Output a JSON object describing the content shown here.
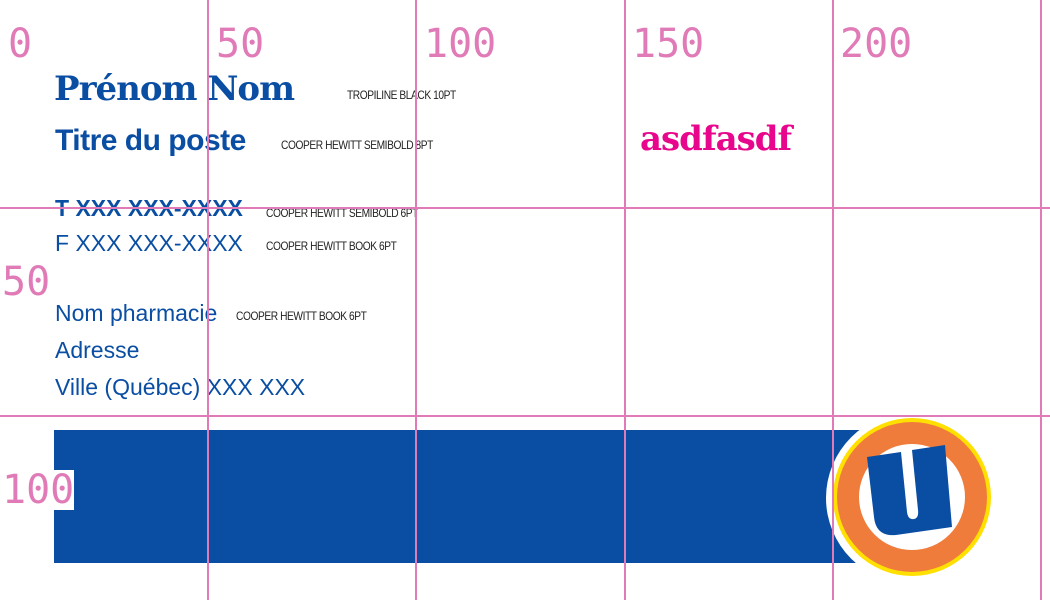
{
  "overlay_text": "asdfasdf",
  "card": {
    "name": "Prénom Nom",
    "name_note": "TROPILINE BLACK 10PT",
    "title": "Titre du poste",
    "title_note": "COOPER HEWITT SEMIBOLD 8PT",
    "phone": "T XXX XXX-XXXX",
    "phone_note": "COOPER HEWITT SEMIBOLD 6PT",
    "fax": "F XXX XXX-XXXX",
    "fax_note": "COOPER HEWITT BOOK 6PT",
    "pharmacy": "Nom pharmacie",
    "pharmacy_note": "COOPER HEWITT BOOK 6PT",
    "address": "Adresse",
    "city": "Ville (Québec) XXX XXX"
  },
  "grid": {
    "labels_x": [
      "0",
      "50",
      "100",
      "150",
      "200"
    ],
    "labels_y": [
      "50",
      "100"
    ]
  },
  "colors": {
    "brand_blue": "#0a4ea3",
    "grid": "#e07bb8",
    "overlay": "#e8078c",
    "logo_orange": "#f07c3c",
    "logo_yellow": "#ffe000"
  }
}
